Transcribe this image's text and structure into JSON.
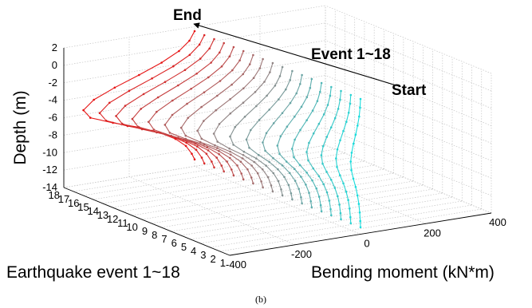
{
  "chart_data": {
    "type": "line",
    "projection": "3d",
    "x_axis": {
      "label": "Bending moment (kN*m)",
      "ticks": [
        -400,
        -200,
        0,
        200,
        400
      ],
      "range": [
        -400,
        400
      ]
    },
    "y_axis": {
      "label": "Earthquake event 1~18",
      "ticks": [
        1,
        2,
        3,
        4,
        5,
        6,
        7,
        8,
        9,
        10,
        11,
        12,
        13,
        14,
        15,
        16,
        17,
        18
      ],
      "range": [
        1,
        18
      ]
    },
    "z_axis": {
      "label": "Depth (m)",
      "ticks": [
        2,
        0,
        -2,
        -4,
        -6,
        -8,
        -10,
        -12,
        -14
      ],
      "range": [
        -14,
        2
      ]
    },
    "grid": true,
    "annotations": [
      {
        "text": "End"
      },
      {
        "text": "Event 1~18"
      },
      {
        "text": "Start"
      }
    ],
    "caption": "(b)",
    "color_start": "#19dcdc",
    "color_middle": "#8c8c8c",
    "color_end": "#e61414",
    "depths": [
      1.5,
      0.5,
      -0.5,
      -1.5,
      -2.5,
      -3.5,
      -4.5,
      -5.5,
      -6.5,
      -7.5,
      -8.5,
      -9.5,
      -10.5,
      -11.5,
      -12.5,
      -13.2
    ],
    "profile_shape": [
      0,
      15,
      45,
      95,
      160,
      230,
      290,
      320,
      300,
      235,
      160,
      100,
      55,
      25,
      8,
      0
    ],
    "series": [
      {
        "event": 1,
        "amplitude": -30
      },
      {
        "event": 2,
        "amplitude": -45
      },
      {
        "event": 3,
        "amplitude": -60
      },
      {
        "event": 4,
        "amplitude": -75
      },
      {
        "event": 5,
        "amplitude": -90
      },
      {
        "event": 6,
        "amplitude": -105
      },
      {
        "event": 7,
        "amplitude": -120
      },
      {
        "event": 8,
        "amplitude": -140
      },
      {
        "event": 9,
        "amplitude": -160
      },
      {
        "event": 10,
        "amplitude": -180
      },
      {
        "event": 11,
        "amplitude": -200
      },
      {
        "event": 12,
        "amplitude": -220
      },
      {
        "event": 13,
        "amplitude": -240
      },
      {
        "event": 14,
        "amplitude": -260
      },
      {
        "event": 15,
        "amplitude": -280
      },
      {
        "event": 16,
        "amplitude": -300
      },
      {
        "event": 17,
        "amplitude": -320
      },
      {
        "event": 18,
        "amplitude": -340
      }
    ]
  }
}
